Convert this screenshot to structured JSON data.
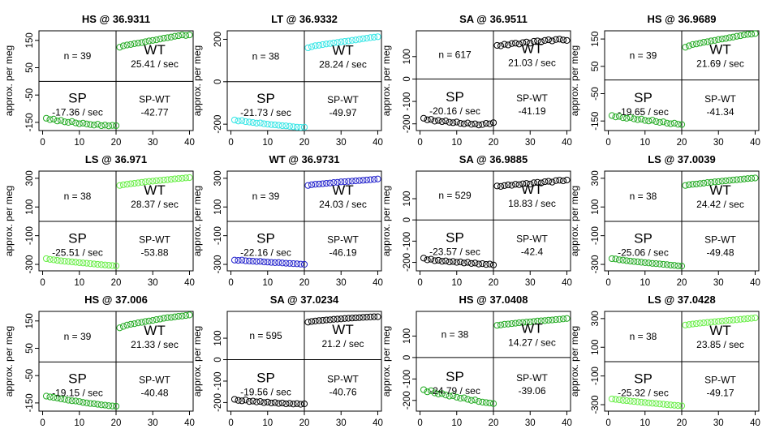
{
  "figure": {
    "ylabel": "approx. per meg"
  },
  "chart_data": [
    {
      "type": "scatter",
      "title": "HS @ 36.9311",
      "ylabel": "approx. per meg",
      "color": "#22aa22",
      "x": [
        1,
        40
      ],
      "ylim": [
        -180,
        185
      ],
      "yticks": [
        -150,
        -50,
        50,
        150
      ],
      "xticks": [
        0,
        10,
        20,
        30,
        40
      ],
      "sp_y": [
        -135,
        -140,
        -138,
        -145,
        -143,
        -148,
        -150,
        -147,
        -152,
        -155,
        -153,
        -156,
        -158,
        -160,
        -157,
        -162,
        -160,
        -163,
        -161,
        -162
      ],
      "wt_y": [
        125,
        130,
        133,
        135,
        138,
        140,
        142,
        145,
        148,
        150,
        152,
        155,
        158,
        160,
        162,
        165,
        167,
        170,
        168,
        170
      ],
      "n_label": "n = 39",
      "sp_label": "SP",
      "sp_rate": "-17.36 / sec",
      "wt_label": "WT",
      "wt_rate": "25.41 / sec",
      "diff_label": "SP-WT",
      "diff_value": "-42.77"
    },
    {
      "type": "scatter",
      "title": "LT @ 36.9332",
      "ylabel": "approx. per meg",
      "color": "#33e5e5",
      "x": [
        1,
        40
      ],
      "ylim": [
        -230,
        240
      ],
      "yticks": [
        -200,
        0,
        200
      ],
      "xticks": [
        0,
        10,
        20,
        30,
        40
      ],
      "sp_y": [
        -180,
        -185,
        -183,
        -188,
        -190,
        -192,
        -195,
        -194,
        -198,
        -200,
        -202,
        -203,
        -205,
        -207,
        -208,
        -210,
        -212,
        -214,
        -215,
        -214
      ],
      "wt_y": [
        160,
        165,
        170,
        172,
        175,
        178,
        180,
        183,
        185,
        188,
        190,
        192,
        195,
        197,
        200,
        203,
        205,
        208,
        210,
        212
      ],
      "n_label": "n = 38",
      "sp_label": "SP",
      "sp_rate": "-21.73 / sec",
      "wt_label": "WT",
      "wt_rate": "28.24 / sec",
      "diff_label": "SP-WT",
      "diff_value": "-49.97"
    },
    {
      "type": "scatter",
      "title": "SA @ 36.9511",
      "ylabel": "approx. per meg",
      "color": "#000000",
      "x": [
        1,
        40
      ],
      "ylim": [
        -230,
        215
      ],
      "yticks": [
        -200,
        -100,
        0,
        100
      ],
      "xticks": [
        0,
        10,
        20,
        30,
        40
      ],
      "sp_y": [
        -175,
        -182,
        -180,
        -188,
        -185,
        -190,
        -187,
        -193,
        -195,
        -192,
        -198,
        -200,
        -196,
        -202,
        -200,
        -205,
        -203,
        -198,
        -200,
        -195
      ],
      "wt_y": [
        150,
        148,
        155,
        152,
        158,
        160,
        156,
        162,
        165,
        160,
        168,
        170,
        166,
        172,
        175,
        170,
        176,
        178,
        174,
        172
      ],
      "n_label": "n = 617",
      "sp_label": "SP",
      "sp_rate": "-20.16 / sec",
      "wt_label": "WT",
      "wt_rate": "21.03 / sec",
      "diff_label": "SP-WT",
      "diff_value": "-41.19"
    },
    {
      "type": "scatter",
      "title": "HS @ 36.9689",
      "ylabel": "approx. per meg",
      "color": "#22aa22",
      "x": [
        1,
        40
      ],
      "ylim": [
        -185,
        180
      ],
      "yticks": [
        -150,
        -50,
        50,
        150
      ],
      "xticks": [
        0,
        10,
        20,
        30,
        40
      ],
      "sp_y": [
        -130,
        -135,
        -133,
        -138,
        -140,
        -137,
        -142,
        -145,
        -143,
        -148,
        -150,
        -147,
        -152,
        -155,
        -153,
        -158,
        -160,
        -158,
        -162,
        -163
      ],
      "wt_y": [
        120,
        125,
        130,
        132,
        135,
        138,
        140,
        143,
        145,
        148,
        150,
        152,
        155,
        157,
        160,
        162,
        165,
        167,
        168,
        170
      ],
      "n_label": "n = 39",
      "sp_label": "SP",
      "sp_rate": "-19.65 / sec",
      "wt_label": "WT",
      "wt_rate": "21.69 / sec",
      "diff_label": "SP-WT",
      "diff_value": "-41.34"
    },
    {
      "type": "scatter",
      "title": "LS @ 36.971",
      "ylabel": "approx. per meg",
      "color": "#66ee44",
      "x": [
        1,
        40
      ],
      "ylim": [
        -345,
        350
      ],
      "yticks": [
        -300,
        -100,
        100,
        300
      ],
      "xticks": [
        0,
        10,
        20,
        30,
        40
      ],
      "sp_y": [
        -260,
        -265,
        -268,
        -272,
        -275,
        -278,
        -280,
        -283,
        -285,
        -288,
        -290,
        -292,
        -295,
        -297,
        -300,
        -302,
        -304,
        -306,
        -308,
        -310
      ],
      "wt_y": [
        250,
        255,
        258,
        262,
        265,
        268,
        272,
        275,
        278,
        280,
        283,
        285,
        288,
        290,
        293,
        296,
        298,
        300,
        303,
        305
      ],
      "n_label": "n = 38",
      "sp_label": "SP",
      "sp_rate": "-25.51 / sec",
      "wt_label": "WT",
      "wt_rate": "28.37 / sec",
      "diff_label": "SP-WT",
      "diff_value": "-53.88"
    },
    {
      "type": "scatter",
      "title": "WT @ 36.9731",
      "ylabel": "approx. per meg",
      "color": "#2222cc",
      "x": [
        1,
        40
      ],
      "ylim": [
        -345,
        350
      ],
      "yticks": [
        -300,
        -100,
        100,
        300
      ],
      "xticks": [
        0,
        10,
        20,
        30,
        40
      ],
      "sp_y": [
        -270,
        -272,
        -270,
        -275,
        -276,
        -278,
        -280,
        -279,
        -283,
        -284,
        -286,
        -288,
        -287,
        -290,
        -292,
        -293,
        -295,
        -296,
        -298,
        -300
      ],
      "wt_y": [
        250,
        255,
        258,
        260,
        262,
        265,
        267,
        270,
        272,
        275,
        276,
        278,
        280,
        282,
        284,
        286,
        288,
        290,
        292,
        295
      ],
      "n_label": "n = 39",
      "sp_label": "SP",
      "sp_rate": "-22.16 / sec",
      "wt_label": "WT",
      "wt_rate": "24.03 / sec",
      "diff_label": "SP-WT",
      "diff_value": "-46.19"
    },
    {
      "type": "scatter",
      "title": "SA @ 36.9885",
      "ylabel": "approx. per meg",
      "color": "#000000",
      "x": [
        1,
        40
      ],
      "ylim": [
        -240,
        230
      ],
      "yticks": [
        -200,
        -100,
        0,
        100
      ],
      "xticks": [
        0,
        10,
        20,
        30,
        40
      ],
      "sp_y": [
        -180,
        -188,
        -185,
        -192,
        -190,
        -195,
        -193,
        -198,
        -196,
        -200,
        -198,
        -203,
        -200,
        -205,
        -203,
        -208,
        -206,
        -210,
        -208,
        -212
      ],
      "wt_y": [
        160,
        158,
        162,
        165,
        163,
        168,
        166,
        170,
        172,
        169,
        175,
        177,
        174,
        180,
        182,
        178,
        185,
        187,
        184,
        188
      ],
      "n_label": "n = 529",
      "sp_label": "SP",
      "sp_rate": "-23.57 / sec",
      "wt_label": "WT",
      "wt_rate": "18.83 / sec",
      "diff_label": "SP-WT",
      "diff_value": "-42.4"
    },
    {
      "type": "scatter",
      "title": "LS @ 37.0039",
      "ylabel": "approx. per meg",
      "color": "#22aa22",
      "x": [
        1,
        40
      ],
      "ylim": [
        -345,
        350
      ],
      "yticks": [
        -300,
        -100,
        100,
        300
      ],
      "xticks": [
        0,
        10,
        20,
        30,
        40
      ],
      "sp_y": [
        -260,
        -262,
        -268,
        -270,
        -274,
        -277,
        -280,
        -282,
        -285,
        -288,
        -290,
        -293,
        -295,
        -297,
        -300,
        -302,
        -305,
        -307,
        -310,
        -312
      ],
      "wt_y": [
        250,
        255,
        258,
        260,
        263,
        266,
        270,
        272,
        275,
        277,
        280,
        282,
        285,
        288,
        290,
        292,
        295,
        298,
        300,
        302
      ],
      "n_label": "n = 38",
      "sp_label": "SP",
      "sp_rate": "-25.06 / sec",
      "wt_label": "WT",
      "wt_rate": "24.42 / sec",
      "diff_label": "SP-WT",
      "diff_value": "-49.48"
    },
    {
      "type": "scatter",
      "title": "HS @ 37.006",
      "ylabel": "approx. per meg",
      "color": "#22aa22",
      "x": [
        1,
        40
      ],
      "ylim": [
        -180,
        185
      ],
      "yticks": [
        -150,
        -50,
        50,
        150
      ],
      "xticks": [
        0,
        10,
        20,
        30,
        40
      ],
      "sp_y": [
        -125,
        -128,
        -130,
        -132,
        -135,
        -137,
        -140,
        -142,
        -143,
        -145,
        -148,
        -150,
        -152,
        -153,
        -155,
        -157,
        -158,
        -160,
        -161,
        -162
      ],
      "wt_y": [
        125,
        130,
        135,
        138,
        140,
        143,
        145,
        148,
        150,
        152,
        155,
        157,
        160,
        162,
        163,
        165,
        167,
        168,
        170,
        172
      ],
      "n_label": "n = 39",
      "sp_label": "SP",
      "sp_rate": "-19.15 / sec",
      "wt_label": "WT",
      "wt_rate": "21.33 / sec",
      "diff_label": "SP-WT",
      "diff_value": "-40.48"
    },
    {
      "type": "scatter",
      "title": "SA @ 37.0234",
      "ylabel": "approx. per meg",
      "color": "#000000",
      "x": [
        1,
        40
      ],
      "ylim": [
        -240,
        225
      ],
      "yticks": [
        -200,
        -100,
        0,
        100
      ],
      "xticks": [
        0,
        10,
        20,
        30,
        40
      ],
      "sp_y": [
        -185,
        -190,
        -192,
        -188,
        -195,
        -193,
        -197,
        -195,
        -200,
        -198,
        -202,
        -200,
        -204,
        -202,
        -206,
        -204,
        -207,
        -205,
        -208,
        -206
      ],
      "wt_y": [
        175,
        178,
        180,
        182,
        183,
        185,
        186,
        188,
        189,
        190,
        192,
        193,
        194,
        195,
        196,
        197,
        198,
        199,
        200,
        200
      ],
      "n_label": "n = 595",
      "sp_label": "SP",
      "sp_rate": "-19.56 / sec",
      "wt_label": "WT",
      "wt_rate": "21.2 / sec",
      "diff_label": "SP-WT",
      "diff_value": "-40.76"
    },
    {
      "type": "scatter",
      "title": "HS @ 37.0408",
      "ylabel": "approx. per meg",
      "color": "#22aa22",
      "x": [
        1,
        40
      ],
      "ylim": [
        -250,
        215
      ],
      "yticks": [
        -200,
        -100,
        0,
        100
      ],
      "xticks": [
        0,
        10,
        20,
        30,
        40
      ],
      "sp_y": [
        -150,
        -160,
        -155,
        -165,
        -170,
        -168,
        -175,
        -180,
        -178,
        -185,
        -190,
        -188,
        -195,
        -200,
        -198,
        -205,
        -208,
        -210,
        -212,
        -215
      ],
      "wt_y": [
        150,
        152,
        155,
        156,
        158,
        160,
        162,
        163,
        165,
        166,
        168,
        170,
        171,
        172,
        174,
        175,
        177,
        178,
        180,
        182
      ],
      "n_label": "n = 38",
      "sp_label": "SP",
      "sp_rate": "-24.79 / sec",
      "wt_label": "WT",
      "wt_rate": "14.27 / sec",
      "diff_label": "SP-WT",
      "diff_value": "-39.06"
    },
    {
      "type": "scatter",
      "title": "LS @ 37.0428",
      "ylabel": "approx. per meg",
      "color": "#66ee44",
      "x": [
        1,
        40
      ],
      "ylim": [
        -345,
        350
      ],
      "yticks": [
        -300,
        -100,
        100,
        300
      ],
      "xticks": [
        0,
        10,
        20,
        30,
        40
      ],
      "sp_y": [
        -260,
        -263,
        -266,
        -270,
        -272,
        -275,
        -278,
        -280,
        -283,
        -285,
        -288,
        -290,
        -292,
        -295,
        -297,
        -300,
        -302,
        -304,
        -306,
        -308
      ],
      "wt_y": [
        255,
        258,
        262,
        265,
        268,
        270,
        273,
        275,
        278,
        280,
        283,
        285,
        288,
        290,
        292,
        295,
        297,
        300,
        302,
        305
      ],
      "n_label": "n = 38",
      "sp_label": "SP",
      "sp_rate": "-25.32 / sec",
      "wt_label": "WT",
      "wt_rate": "23.85 / sec",
      "diff_label": "SP-WT",
      "diff_value": "-49.17"
    }
  ]
}
